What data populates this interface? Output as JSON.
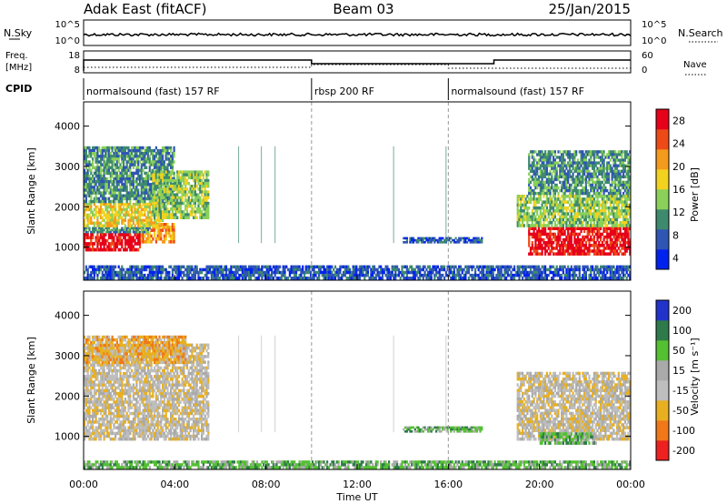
{
  "header": {
    "station": "Adak East (fitACF)",
    "beam": "Beam 03",
    "date": "25/Jan/2015"
  },
  "panels": {
    "nsky_label": "N.Sky",
    "nsky_ticks": [
      "10^5",
      "10^0"
    ],
    "nsearch_label": "N.Search",
    "freq_label_1": "Freq.",
    "freq_label_2": "[MHz]",
    "freq_ticks": [
      "18",
      "8"
    ],
    "nave_ticks": [
      "60",
      "0"
    ],
    "nave_label": "Nave",
    "cpid_label": "CPID",
    "cpid_segments": [
      {
        "label": "normalsound (fast) 157 RF",
        "start_h": 0,
        "end_h": 10
      },
      {
        "label": "rbsp 200 RF",
        "start_h": 10,
        "end_h": 16
      },
      {
        "label": "normalsound (fast) 157 RF",
        "start_h": 16,
        "end_h": 24
      }
    ]
  },
  "colors": {
    "power": [
      "#0022ee",
      "#2f55b5",
      "#3e8a6e",
      "#8ad05a",
      "#f2d21e",
      "#f49a1c",
      "#ee4a18",
      "#e6001a"
    ],
    "velocity": [
      "#2233cc",
      "#2f7a4a",
      "#54c032",
      "#aaaaaa",
      "#bebebe",
      "#e8b020",
      "#f07818",
      "#ee2020"
    ],
    "ground_scatter": "#bebebe"
  },
  "chart_data": [
    {
      "type": "heatmap",
      "name": "power",
      "ylabel": "Slant Range [km]",
      "xlabel": "Time UT",
      "x_ticks": [
        "00:00",
        "04:00",
        "08:00",
        "12:00",
        "16:00",
        "20:00",
        "00:00"
      ],
      "xlim_hours": [
        0,
        24
      ],
      "y_ticks": [
        1000,
        2000,
        3000,
        4000
      ],
      "ylim_km": [
        180,
        4600
      ],
      "colorbar_label": "Power [dB]",
      "colorbar_ticks": [
        "28",
        "24",
        "20",
        "16",
        "12",
        "8",
        "4"
      ],
      "colorbar_range": [
        0,
        30
      ],
      "regions": [
        {
          "t0": 0.0,
          "t1": 2.5,
          "r0": 900,
          "r1": 1350,
          "level": 7
        },
        {
          "t0": 2.5,
          "t1": 4.0,
          "r0": 1100,
          "r1": 1600,
          "level": 5
        },
        {
          "t0": 0.0,
          "t1": 3.0,
          "r0": 1350,
          "r1": 1500,
          "level": 2
        },
        {
          "t0": 0.0,
          "t1": 3.5,
          "r0": 1500,
          "r1": 2100,
          "level": 4
        },
        {
          "t0": 0.0,
          "t1": 4.0,
          "r0": 2100,
          "r1": 3500,
          "level": 2
        },
        {
          "t0": 3.0,
          "t1": 5.5,
          "r0": 1700,
          "r1": 2900,
          "level": 3
        },
        {
          "t0": 14.0,
          "t1": 17.5,
          "r0": 1100,
          "r1": 1250,
          "level": 1
        },
        {
          "t0": 19.5,
          "t1": 24.0,
          "r0": 800,
          "r1": 1500,
          "level": 7
        },
        {
          "t0": 19.0,
          "t1": 24.0,
          "r0": 1500,
          "r1": 2300,
          "level": 3
        },
        {
          "t0": 19.5,
          "t1": 24.0,
          "r0": 2300,
          "r1": 3400,
          "level": 2
        },
        {
          "t0": 0.0,
          "t1": 24.0,
          "r0": 200,
          "r1": 550,
          "level": 1
        }
      ]
    },
    {
      "type": "heatmap",
      "name": "velocity",
      "ylabel": "Slant Range [km]",
      "xlabel": "Time UT",
      "x_ticks": [
        "00:00",
        "04:00",
        "08:00",
        "12:00",
        "16:00",
        "20:00",
        "00:00"
      ],
      "xlim_hours": [
        0,
        24
      ],
      "y_ticks": [
        1000,
        2000,
        3000,
        4000
      ],
      "ylim_km": [
        180,
        4600
      ],
      "colorbar_label": "Velocity [m s⁻¹]",
      "colorbar_ticks": [
        "200",
        "100",
        "50",
        "15",
        "-15",
        "-50",
        "-100",
        "-200"
      ],
      "colorbar_range": [
        -250,
        250
      ],
      "regions": [
        {
          "t0": 0.0,
          "t1": 5.5,
          "r0": 900,
          "r1": 3300,
          "level": 4
        },
        {
          "t0": 0.0,
          "t1": 4.5,
          "r0": 2800,
          "r1": 3500,
          "level": 5
        },
        {
          "t0": 14.0,
          "t1": 17.5,
          "r0": 1100,
          "r1": 1250,
          "level": 2
        },
        {
          "t0": 19.0,
          "t1": 24.0,
          "r0": 900,
          "r1": 2600,
          "level": 4
        },
        {
          "t0": 20.0,
          "t1": 22.5,
          "r0": 800,
          "r1": 1100,
          "level": 2
        },
        {
          "t0": 0.0,
          "t1": 24.0,
          "r0": 200,
          "r1": 400,
          "level": 2
        }
      ]
    }
  ]
}
